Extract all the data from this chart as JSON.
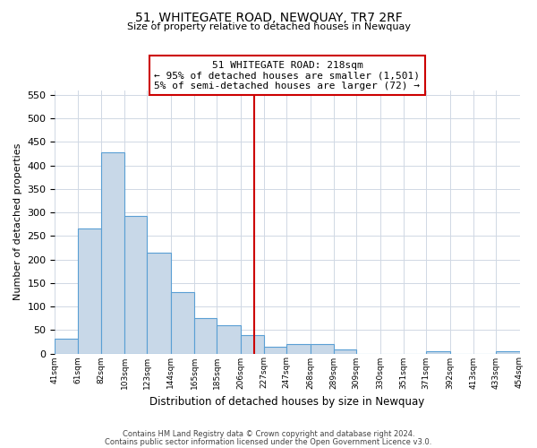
{
  "title": "51, WHITEGATE ROAD, NEWQUAY, TR7 2RF",
  "subtitle": "Size of property relative to detached houses in Newquay",
  "xlabel": "Distribution of detached houses by size in Newquay",
  "ylabel": "Number of detached properties",
  "bar_left_edges": [
    41,
    61,
    82,
    103,
    123,
    144,
    165,
    185,
    206,
    227,
    247,
    268,
    289,
    309,
    330,
    351,
    371,
    392,
    413,
    433
  ],
  "bar_widths": [
    20,
    21,
    21,
    20,
    21,
    21,
    20,
    21,
    21,
    20,
    21,
    21,
    20,
    21,
    21,
    20,
    21,
    21,
    20,
    21
  ],
  "bar_heights": [
    32,
    265,
    428,
    292,
    215,
    130,
    76,
    60,
    40,
    14,
    20,
    20,
    9,
    0,
    0,
    0,
    5,
    0,
    0,
    5
  ],
  "bar_color": "#c8d8e8",
  "bar_edge_color": "#5a9fd4",
  "ylim": [
    0,
    560
  ],
  "yticks": [
    0,
    50,
    100,
    150,
    200,
    250,
    300,
    350,
    400,
    450,
    500,
    550
  ],
  "tick_labels": [
    "41sqm",
    "61sqm",
    "82sqm",
    "103sqm",
    "123sqm",
    "144sqm",
    "165sqm",
    "185sqm",
    "206sqm",
    "227sqm",
    "247sqm",
    "268sqm",
    "289sqm",
    "309sqm",
    "330sqm",
    "351sqm",
    "371sqm",
    "392sqm",
    "413sqm",
    "433sqm",
    "454sqm"
  ],
  "vline_x": 218,
  "vline_color": "#cc0000",
  "ann_line1": "51 WHITEGATE ROAD: 218sqm",
  "ann_line2": "← 95% of detached houses are smaller (1,501)",
  "ann_line3": "5% of semi-detached houses are larger (72) →",
  "footer_line1": "Contains HM Land Registry data © Crown copyright and database right 2024.",
  "footer_line2": "Contains public sector information licensed under the Open Government Licence v3.0.",
  "background_color": "#ffffff",
  "grid_color": "#d0d8e4"
}
